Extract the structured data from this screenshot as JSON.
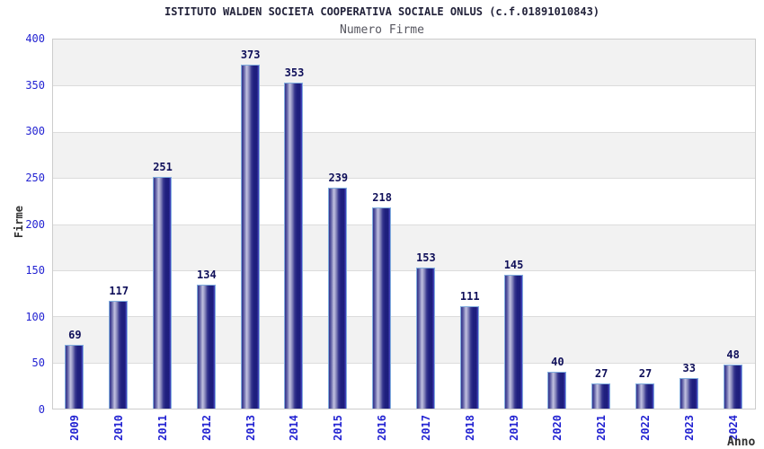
{
  "chart_data": {
    "type": "bar",
    "title": "ISTITUTO WALDEN SOCIETA COOPERATIVA SOCIALE ONLUS (c.f.01891010843)",
    "subtitle": "Numero Firme",
    "xlabel": "Anno",
    "ylabel": "Firme",
    "categories": [
      "2009",
      "2010",
      "2011",
      "2012",
      "2013",
      "2014",
      "2015",
      "2016",
      "2017",
      "2018",
      "2019",
      "2020",
      "2021",
      "2022",
      "2023",
      "2024"
    ],
    "values": [
      69,
      117,
      251,
      134,
      373,
      353,
      239,
      218,
      153,
      111,
      145,
      40,
      27,
      27,
      33,
      48
    ],
    "ylim": [
      0,
      400
    ],
    "yticks": [
      0,
      50,
      100,
      150,
      200,
      250,
      300,
      350,
      400
    ],
    "grid": "horizontal-bands-alternating",
    "legend": "none",
    "bar_label_position": "above"
  },
  "colors": {
    "background": "#ffffff",
    "band_gray": "#f2f2f2",
    "band_white": "#ffffff",
    "grid_line": "#dcdcdc",
    "plot_border": "#cccccc",
    "tick_label_blue": "#2323d2",
    "value_label_navy": "#10105a",
    "title_color": "#22223a",
    "subtitle_color": "#56565f",
    "axis_title_color": "#303030",
    "bar_dark": "#1d1d7c",
    "bar_highlight": "#c2c2e0",
    "bar_edge_lightblue": "#82aede",
    "bar_right_edge_blue": "#4949c6"
  }
}
